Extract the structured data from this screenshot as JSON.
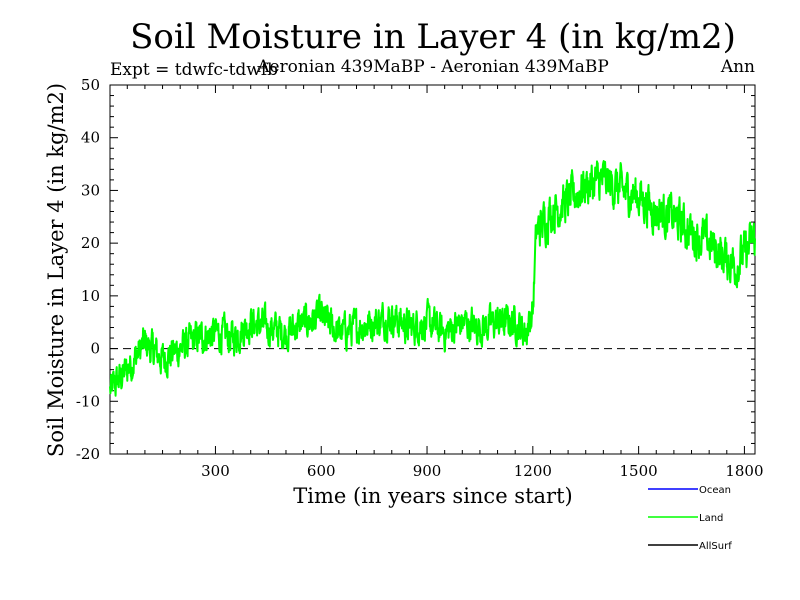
{
  "chart_data": {
    "type": "line",
    "title": "Soil Moisture in Layer 4 (in kg/m2)",
    "subtitle_left": "Expt = tdwfc-tdwfb",
    "subtitle_center": "Aeronian 439MaBP - Aeronian 439MaBP",
    "subtitle_right": "Ann",
    "xlabel": "Time (in years since start)",
    "ylabel": "Soil Moisture in Layer 4 (in kg/m2)",
    "xlim": [
      1,
      1830
    ],
    "ylim": [
      -20,
      50
    ],
    "x_ticks": [
      "300",
      "600",
      "900",
      "1200",
      "1500",
      "1800"
    ],
    "y_ticks": [
      "-20",
      "-10",
      "0",
      "10",
      "20",
      "30",
      "40",
      "50"
    ],
    "zero_line": 0,
    "legend": [
      {
        "name": "Ocean",
        "color": "#0000ff"
      },
      {
        "name": "Land",
        "color": "#00ff00"
      },
      {
        "name": "AllSurf",
        "color": "#000000"
      }
    ],
    "series": [
      {
        "name": "Land",
        "color": "#00ff00",
        "x": [
          1,
          50,
          100,
          150,
          200,
          250,
          300,
          350,
          400,
          450,
          500,
          550,
          600,
          650,
          700,
          750,
          800,
          850,
          900,
          950,
          1000,
          1050,
          1100,
          1150,
          1180,
          1200,
          1210,
          1250,
          1300,
          1350,
          1400,
          1450,
          1500,
          1550,
          1600,
          1650,
          1700,
          1750,
          1780,
          1800,
          1830
        ],
        "y": [
          -8,
          -4,
          1,
          -2,
          0,
          2,
          3,
          2,
          5,
          4,
          3,
          5,
          6,
          3,
          4,
          5,
          6,
          4,
          5,
          3,
          5,
          4,
          5,
          5,
          3,
          7,
          22,
          26,
          28,
          31,
          32,
          30,
          29,
          26,
          25,
          22,
          20,
          17,
          16,
          18,
          21
        ]
      }
    ]
  }
}
